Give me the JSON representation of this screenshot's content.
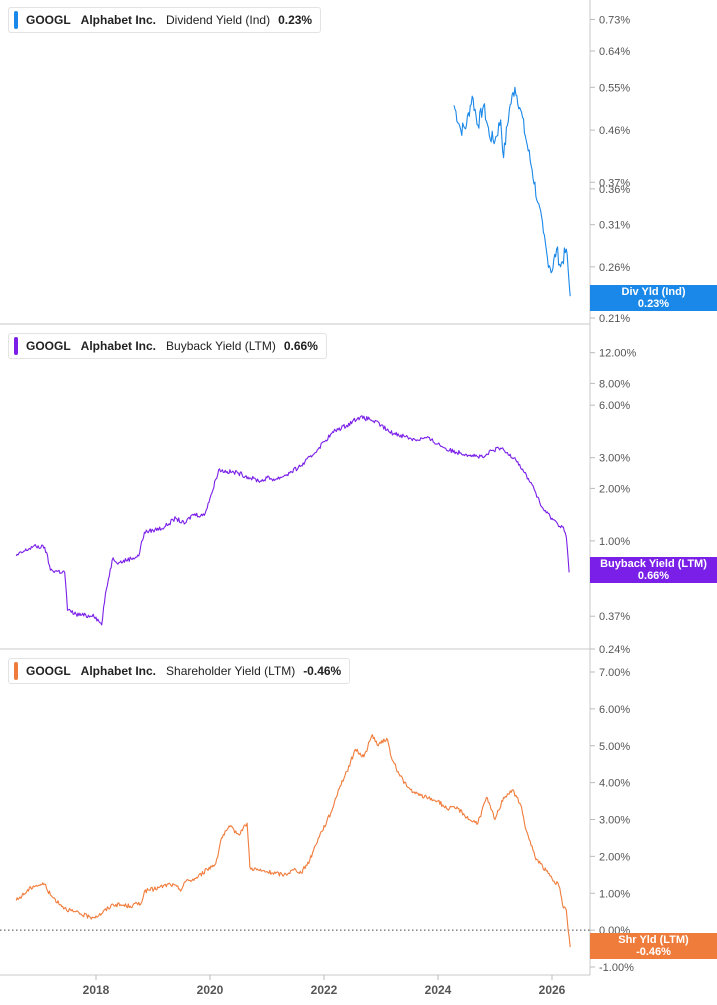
{
  "chart_data": [
    {
      "type": "line",
      "ticker": "GOOGL",
      "company": "Alphabet Inc.",
      "metric": "Dividend Yield (Ind)",
      "current_value": "0.23%",
      "badge_label": "Div Yld (Ind)",
      "badge_value": "0.23%",
      "color": "#1a88e8",
      "yscale": "log",
      "ylim": [
        0.21,
        0.75
      ],
      "yticks": [
        "0.73%",
        "0.64%",
        "0.55%",
        "0.46%",
        "0.37%",
        "0.36%",
        "0.31%",
        "0.26%",
        "0.21%"
      ],
      "x": [
        2024.28,
        2024.4,
        2024.5,
        2024.6,
        2024.7,
        2024.8,
        2024.9,
        2025.0,
        2025.1,
        2025.15,
        2025.25,
        2025.35,
        2025.45,
        2025.55,
        2025.65,
        2025.75,
        2025.85,
        2025.92,
        2026.0,
        2026.08,
        2026.15,
        2026.25,
        2026.32
      ],
      "y": [
        0.51,
        0.46,
        0.47,
        0.53,
        0.47,
        0.51,
        0.45,
        0.44,
        0.48,
        0.41,
        0.5,
        0.55,
        0.5,
        0.44,
        0.39,
        0.34,
        0.3,
        0.27,
        0.255,
        0.28,
        0.26,
        0.28,
        0.23
      ]
    },
    {
      "type": "line",
      "ticker": "GOOGL",
      "company": "Alphabet Inc.",
      "metric": "Buyback Yield (LTM)",
      "current_value": "0.66%",
      "badge_label": "Buyback Yield (LTM)",
      "badge_value": "0.66%",
      "color": "#7a1fe8",
      "yscale": "log",
      "ylim": [
        0.24,
        14
      ],
      "yticks": [
        "12.00%",
        "8.00%",
        "6.00%",
        "3.00%",
        "2.00%",
        "1.00%",
        "0.37%",
        "0.24%"
      ],
      "x": [
        2016.6,
        2016.9,
        2017.1,
        2017.2,
        2017.45,
        2017.5,
        2017.65,
        2017.9,
        2017.95,
        2018.1,
        2018.3,
        2018.4,
        2018.75,
        2018.85,
        2019.0,
        2019.2,
        2019.4,
        2019.55,
        2019.7,
        2019.9,
        2020.05,
        2020.15,
        2020.3,
        2020.5,
        2020.7,
        2020.9,
        2021.0,
        2021.15,
        2021.4,
        2021.6,
        2021.8,
        2022.0,
        2022.2,
        2022.4,
        2022.6,
        2022.8,
        2023.0,
        2023.15,
        2023.4,
        2023.6,
        2023.8,
        2024.0,
        2024.2,
        2024.4,
        2024.6,
        2024.8,
        2024.95,
        2025.1,
        2025.2,
        2025.35,
        2025.5,
        2025.65,
        2025.8,
        2025.9,
        2026.0,
        2026.1,
        2026.2,
        2026.25,
        2026.3
      ],
      "y": [
        0.82,
        0.93,
        0.92,
        0.68,
        0.66,
        0.4,
        0.38,
        0.37,
        0.38,
        0.33,
        0.8,
        0.75,
        0.82,
        1.12,
        1.15,
        1.2,
        1.35,
        1.25,
        1.42,
        1.4,
        1.95,
        2.55,
        2.5,
        2.45,
        2.3,
        2.2,
        2.3,
        2.25,
        2.45,
        2.7,
        3.1,
        3.7,
        4.3,
        4.6,
        5.1,
        5.0,
        4.6,
        4.2,
        4.0,
        3.8,
        3.9,
        3.6,
        3.3,
        3.2,
        3.1,
        3.0,
        3.3,
        3.4,
        3.2,
        3.0,
        2.5,
        2.1,
        1.6,
        1.45,
        1.35,
        1.25,
        1.2,
        1.05,
        0.66
      ]
    },
    {
      "type": "line",
      "ticker": "GOOGL",
      "company": "Alphabet Inc.",
      "metric": "Shareholder Yield (LTM)",
      "current_value": "-0.46%",
      "badge_label": "Shr Yld (LTM)",
      "badge_value": "-0.46%",
      "color": "#f07c3c",
      "yscale": "linear",
      "ylim": [
        -1.0,
        7.0
      ],
      "yticks": [
        "7.00%",
        "6.00%",
        "5.00%",
        "4.00%",
        "3.00%",
        "2.00%",
        "1.00%",
        "0.00%",
        "-1.00%"
      ],
      "zero_line": true,
      "x": [
        2016.6,
        2016.9,
        2017.1,
        2017.2,
        2017.45,
        2017.6,
        2017.9,
        2018.05,
        2018.3,
        2018.6,
        2018.8,
        2018.85,
        2019.1,
        2019.3,
        2019.5,
        2019.55,
        2019.75,
        2019.95,
        2020.1,
        2020.2,
        2020.35,
        2020.5,
        2020.65,
        2020.7,
        2020.9,
        2021.1,
        2021.3,
        2021.5,
        2021.6,
        2021.75,
        2021.9,
        2022.05,
        2022.15,
        2022.25,
        2022.4,
        2022.55,
        2022.7,
        2022.85,
        2022.95,
        2023.1,
        2023.2,
        2023.3,
        2023.45,
        2023.6,
        2023.8,
        2024.0,
        2024.15,
        2024.35,
        2024.55,
        2024.7,
        2024.85,
        2025.0,
        2025.15,
        2025.3,
        2025.45,
        2025.55,
        2025.7,
        2025.8,
        2026.0,
        2026.12,
        2026.2,
        2026.25,
        2026.32
      ],
      "y": [
        0.8,
        1.2,
        1.25,
        0.95,
        0.6,
        0.5,
        0.35,
        0.4,
        0.7,
        0.65,
        0.75,
        1.05,
        1.15,
        1.25,
        1.1,
        1.3,
        1.4,
        1.65,
        1.8,
        2.5,
        2.8,
        2.6,
        2.9,
        1.7,
        1.6,
        1.55,
        1.5,
        1.65,
        1.55,
        1.9,
        2.5,
        2.95,
        3.3,
        3.8,
        4.3,
        4.9,
        4.7,
        5.3,
        5.0,
        5.2,
        4.6,
        4.3,
        3.9,
        3.7,
        3.6,
        3.5,
        3.3,
        3.3,
        3.0,
        2.9,
        3.6,
        3.0,
        3.6,
        3.8,
        3.4,
        2.7,
        2.0,
        1.8,
        1.4,
        1.2,
        0.6,
        0.55,
        -0.46
      ]
    }
  ],
  "x_axis": {
    "ticks": [
      "2018",
      "2020",
      "2022",
      "2024",
      "2026"
    ],
    "tick_values": [
      2018,
      2020,
      2022,
      2024,
      2026
    ]
  }
}
